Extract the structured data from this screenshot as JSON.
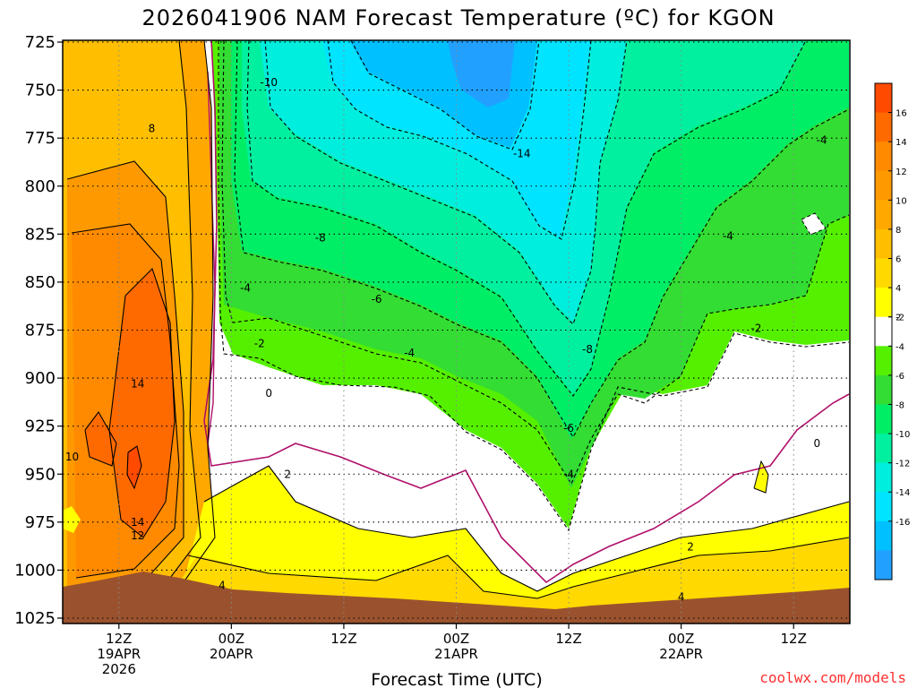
{
  "chart_data": {
    "type": "heatmap",
    "title": "2026041906 NAM Forecast Temperature (ºC) for KGON",
    "xlabel": "Forecast Time (UTC)",
    "ylabel": "",
    "y_ticks": [
      "725",
      "750",
      "775",
      "800",
      "825",
      "850",
      "875",
      "900",
      "925",
      "950",
      "975",
      "1000",
      "1025"
    ],
    "ylim": [
      725,
      1025
    ],
    "x_ticks": [
      {
        "hour": 6,
        "lines": [
          "12Z",
          "19APR",
          "2026"
        ]
      },
      {
        "hour": 18,
        "lines": [
          "00Z",
          "20APR"
        ]
      },
      {
        "hour": 30,
        "lines": [
          "12Z"
        ]
      },
      {
        "hour": 42,
        "lines": [
          "00Z",
          "21APR"
        ]
      },
      {
        "hour": 54,
        "lines": [
          "12Z"
        ]
      },
      {
        "hour": 66,
        "lines": [
          "00Z",
          "22APR"
        ]
      },
      {
        "hour": 78,
        "lines": [
          "12Z"
        ]
      }
    ],
    "xlim": [
      0,
      84
    ],
    "colorbar": {
      "ticks": [
        "16",
        "14",
        "12",
        "10",
        "8",
        "6",
        "4",
        "2",
        "-2",
        "-4",
        "-6",
        "-8",
        "-10",
        "-12",
        "-14",
        "-16"
      ],
      "bands": [
        {
          "range": [
            16,
            18
          ],
          "color": "#ff4a00"
        },
        {
          "range": [
            14,
            16
          ],
          "color": "#ff6a00"
        },
        {
          "range": [
            12,
            14
          ],
          "color": "#ff8a00"
        },
        {
          "range": [
            10,
            12
          ],
          "color": "#ff9900"
        },
        {
          "range": [
            8,
            10
          ],
          "color": "#ffa800"
        },
        {
          "range": [
            6,
            8
          ],
          "color": "#ffbf00"
        },
        {
          "range": [
            4,
            6
          ],
          "color": "#ffd900"
        },
        {
          "range": [
            2,
            4
          ],
          "color": "#ffff00"
        },
        {
          "range": [
            -2,
            2
          ],
          "color": "#ffffff"
        },
        {
          "range": [
            -4,
            -2
          ],
          "color": "#55f000"
        },
        {
          "range": [
            -6,
            -4
          ],
          "color": "#33dd33"
        },
        {
          "range": [
            -8,
            -6
          ],
          "color": "#00ee66"
        },
        {
          "range": [
            -10,
            -8
          ],
          "color": "#00f0a0"
        },
        {
          "range": [
            -12,
            -10
          ],
          "color": "#00eedd"
        },
        {
          "range": [
            -14,
            -12
          ],
          "color": "#00e4ff"
        },
        {
          "range": [
            -16,
            -14
          ],
          "color": "#00c0ff"
        },
        {
          "range": [
            -18,
            -16
          ],
          "color": "#22a0ff"
        }
      ]
    },
    "surface_color": "#9a522e",
    "contour_labels": [
      {
        "text": "-10",
        "hour": 22,
        "pres": 746
      },
      {
        "text": "-14",
        "hour": 49,
        "pres": 783
      },
      {
        "text": "-8",
        "hour": 27.5,
        "pres": 827
      },
      {
        "text": "-4",
        "hour": 19.5,
        "pres": 853
      },
      {
        "text": "-6",
        "hour": 33.5,
        "pres": 859
      },
      {
        "text": "-2",
        "hour": 21,
        "pres": 882
      },
      {
        "text": "-4",
        "hour": 37,
        "pres": 887
      },
      {
        "text": "-8",
        "hour": 56,
        "pres": 885
      },
      {
        "text": "-2",
        "hour": 74,
        "pres": 874
      },
      {
        "text": "-4",
        "hour": 81,
        "pres": 776
      },
      {
        "text": "-4",
        "hour": 71,
        "pres": 826
      },
      {
        "text": "0",
        "hour": 22,
        "pres": 908
      },
      {
        "text": "0",
        "hour": 80.5,
        "pres": 934
      },
      {
        "text": "-6",
        "hour": 54,
        "pres": 926
      },
      {
        "text": "-4",
        "hour": 54,
        "pres": 950
      },
      {
        "text": "2",
        "hour": 24,
        "pres": 950
      },
      {
        "text": "2",
        "hour": 67,
        "pres": 988
      },
      {
        "text": "4",
        "hour": 17,
        "pres": 1008
      },
      {
        "text": "4",
        "hour": 66,
        "pres": 1014
      },
      {
        "text": "8",
        "hour": 9.5,
        "pres": 770
      },
      {
        "text": "14",
        "hour": 8,
        "pres": 903
      },
      {
        "text": "10",
        "hour": 1,
        "pres": 941
      },
      {
        "text": "14",
        "hour": 8,
        "pres": 975
      },
      {
        "text": "12",
        "hour": 8,
        "pres": 982
      }
    ]
  },
  "credit": "coolwx.com/models",
  "colors": {
    "credit": "#ff3030",
    "grid": "#000000"
  }
}
